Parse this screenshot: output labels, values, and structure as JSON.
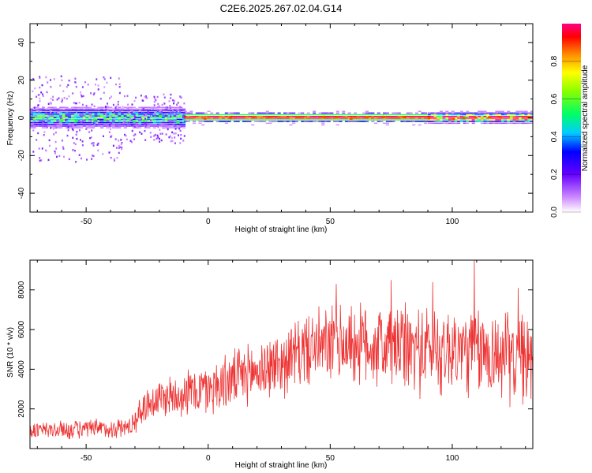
{
  "title": "C2E6.2025.267.02.04.G14",
  "chart_data": [
    {
      "type": "heatmap",
      "name": "spectrogram",
      "xlabel": "Height of straight line (km)",
      "ylabel": "Frequency (Hz)",
      "xlim": [
        -73,
        133
      ],
      "ylim": [
        -50,
        50
      ],
      "xticks": [
        -50,
        0,
        50,
        100
      ],
      "yticks": [
        -40,
        -20,
        0,
        20,
        40
      ],
      "colorbar": {
        "label": "Normalized spectral amplitude",
        "ticks": [
          "0.0",
          "0.2",
          "0.4",
          "0.6",
          "0.8"
        ],
        "range": [
          0,
          1
        ]
      },
      "band_segments": [
        {
          "x_start": -73,
          "x_end": -10,
          "center_hz": 0,
          "width_hz": 8,
          "peak_amp": 0.5
        },
        {
          "x_start": -10,
          "x_end": 90,
          "center_hz": 0,
          "width_hz": 1,
          "peak_amp": 1.0
        },
        {
          "x_start": 90,
          "x_end": 133,
          "center_hz": 0,
          "width_hz": 4,
          "peak_amp": 1.0
        }
      ]
    },
    {
      "type": "line",
      "name": "snr",
      "xlabel": "Height of straight line (km)",
      "ylabel": "SNR (10 * v/v)",
      "xlim": [
        -73,
        133
      ],
      "ylim": [
        0,
        9500
      ],
      "xticks": [
        -50,
        0,
        50,
        100
      ],
      "yticks": [
        2000,
        4000,
        6000,
        8000
      ],
      "color": "#ee3333",
      "trend": {
        "x": [
          -73,
          -40,
          -32,
          -25,
          -15,
          0,
          15,
          30,
          40,
          55,
          70,
          85,
          100,
          115,
          133
        ],
        "y": [
          900,
          1000,
          1100,
          2300,
          2700,
          3000,
          3700,
          4300,
          5000,
          5300,
          5200,
          5000,
          5000,
          4800,
          4400
        ]
      },
      "noise_amplitude": {
        "x": [
          -73,
          -32,
          -25,
          0,
          30,
          50,
          80,
          133
        ],
        "y": [
          450,
          500,
          900,
          1300,
          1600,
          1900,
          2200,
          2200
        ]
      },
      "peaks": [
        {
          "x": 52.5,
          "y": 8300
        },
        {
          "x": 75,
          "y": 8500
        },
        {
          "x": 92,
          "y": 8400
        },
        {
          "x": 109,
          "y": 9500
        },
        {
          "x": 127,
          "y": 8100
        }
      ]
    }
  ]
}
